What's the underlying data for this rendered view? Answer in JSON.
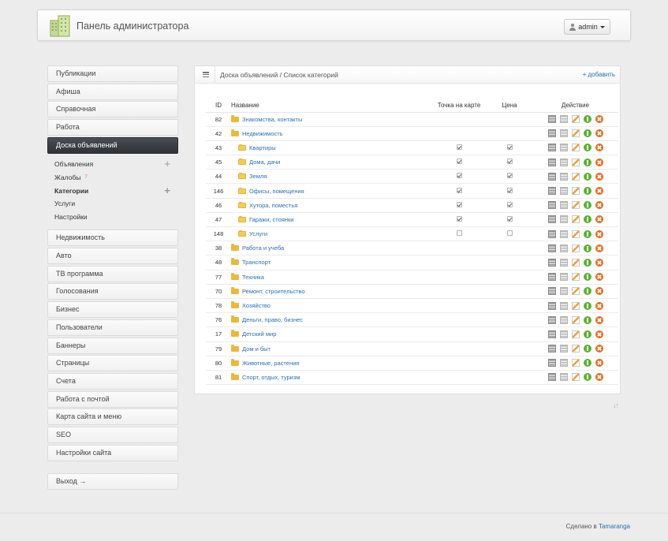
{
  "header": {
    "title": "Панель администратора",
    "user": "admin"
  },
  "sidebar": {
    "top_items": [
      "Публикации",
      "Афиша",
      "Справочная",
      "Работа"
    ],
    "active_item": "Доска объявлений",
    "submenu": [
      {
        "label": "Объявления",
        "plus": true,
        "badge": "",
        "bold": false
      },
      {
        "label": "Жалобы",
        "plus": false,
        "badge": "7",
        "bold": false
      },
      {
        "label": "Категории",
        "plus": true,
        "badge": "",
        "bold": true
      },
      {
        "label": "Услуги",
        "plus": false,
        "badge": "",
        "bold": false
      },
      {
        "label": "Настройки",
        "plus": false,
        "badge": "",
        "bold": false
      }
    ],
    "bottom_items": [
      "Недвижимость",
      "Авто",
      "ТВ программа",
      "Голосования",
      "Бизнес",
      "Пользователи",
      "Баннеры",
      "Страницы",
      "Счета",
      "Работа с почтой",
      "Карта сайта и меню",
      "SEO",
      "Настройки сайта"
    ],
    "logout": "Выход →"
  },
  "panel": {
    "breadcrumb": "Доска объявлений / Список категорий",
    "add_label": "+ добавить",
    "columns": {
      "id": "ID",
      "name": "Название",
      "map": "Точка на карте",
      "price": "Цена",
      "action": "Действие"
    },
    "rows": [
      {
        "id": "82",
        "name": "Знакомства, контакты",
        "child": false,
        "map": null,
        "price": null
      },
      {
        "id": "42",
        "name": "Недвижимость",
        "child": false,
        "map": null,
        "price": null
      },
      {
        "id": "43",
        "name": "Квартиры",
        "child": true,
        "map": true,
        "price": true
      },
      {
        "id": "45",
        "name": "Дома, дачи",
        "child": true,
        "map": true,
        "price": true
      },
      {
        "id": "44",
        "name": "Земля",
        "child": true,
        "map": true,
        "price": true
      },
      {
        "id": "146",
        "name": "Офисы, помещения",
        "child": true,
        "map": true,
        "price": true
      },
      {
        "id": "46",
        "name": "Хутора, поместья",
        "child": true,
        "map": true,
        "price": true
      },
      {
        "id": "47",
        "name": "Гаражи, стоянки",
        "child": true,
        "map": true,
        "price": true
      },
      {
        "id": "148",
        "name": "Услуги",
        "child": true,
        "map": false,
        "price": false
      },
      {
        "id": "38",
        "name": "Работа и учеба",
        "child": false,
        "map": null,
        "price": null
      },
      {
        "id": "48",
        "name": "Транспорт",
        "child": false,
        "map": null,
        "price": null
      },
      {
        "id": "77",
        "name": "Техника",
        "child": false,
        "map": null,
        "price": null
      },
      {
        "id": "70",
        "name": "Ремонт, строительство",
        "child": false,
        "map": null,
        "price": null
      },
      {
        "id": "78",
        "name": "Хозяйство",
        "child": false,
        "map": null,
        "price": null
      },
      {
        "id": "76",
        "name": "Деньги, право, бизнес",
        "child": false,
        "map": null,
        "price": null
      },
      {
        "id": "17",
        "name": "Детский мир",
        "child": false,
        "map": null,
        "price": null
      },
      {
        "id": "79",
        "name": "Дом и быт",
        "child": false,
        "map": null,
        "price": null
      },
      {
        "id": "80",
        "name": "Животные, растения",
        "child": false,
        "map": null,
        "price": null
      },
      {
        "id": "81",
        "name": "Спорт, отдых, туризм",
        "child": false,
        "map": null,
        "price": null
      }
    ]
  },
  "footer": {
    "text": "Сделано в",
    "link": "Tamaranga"
  }
}
